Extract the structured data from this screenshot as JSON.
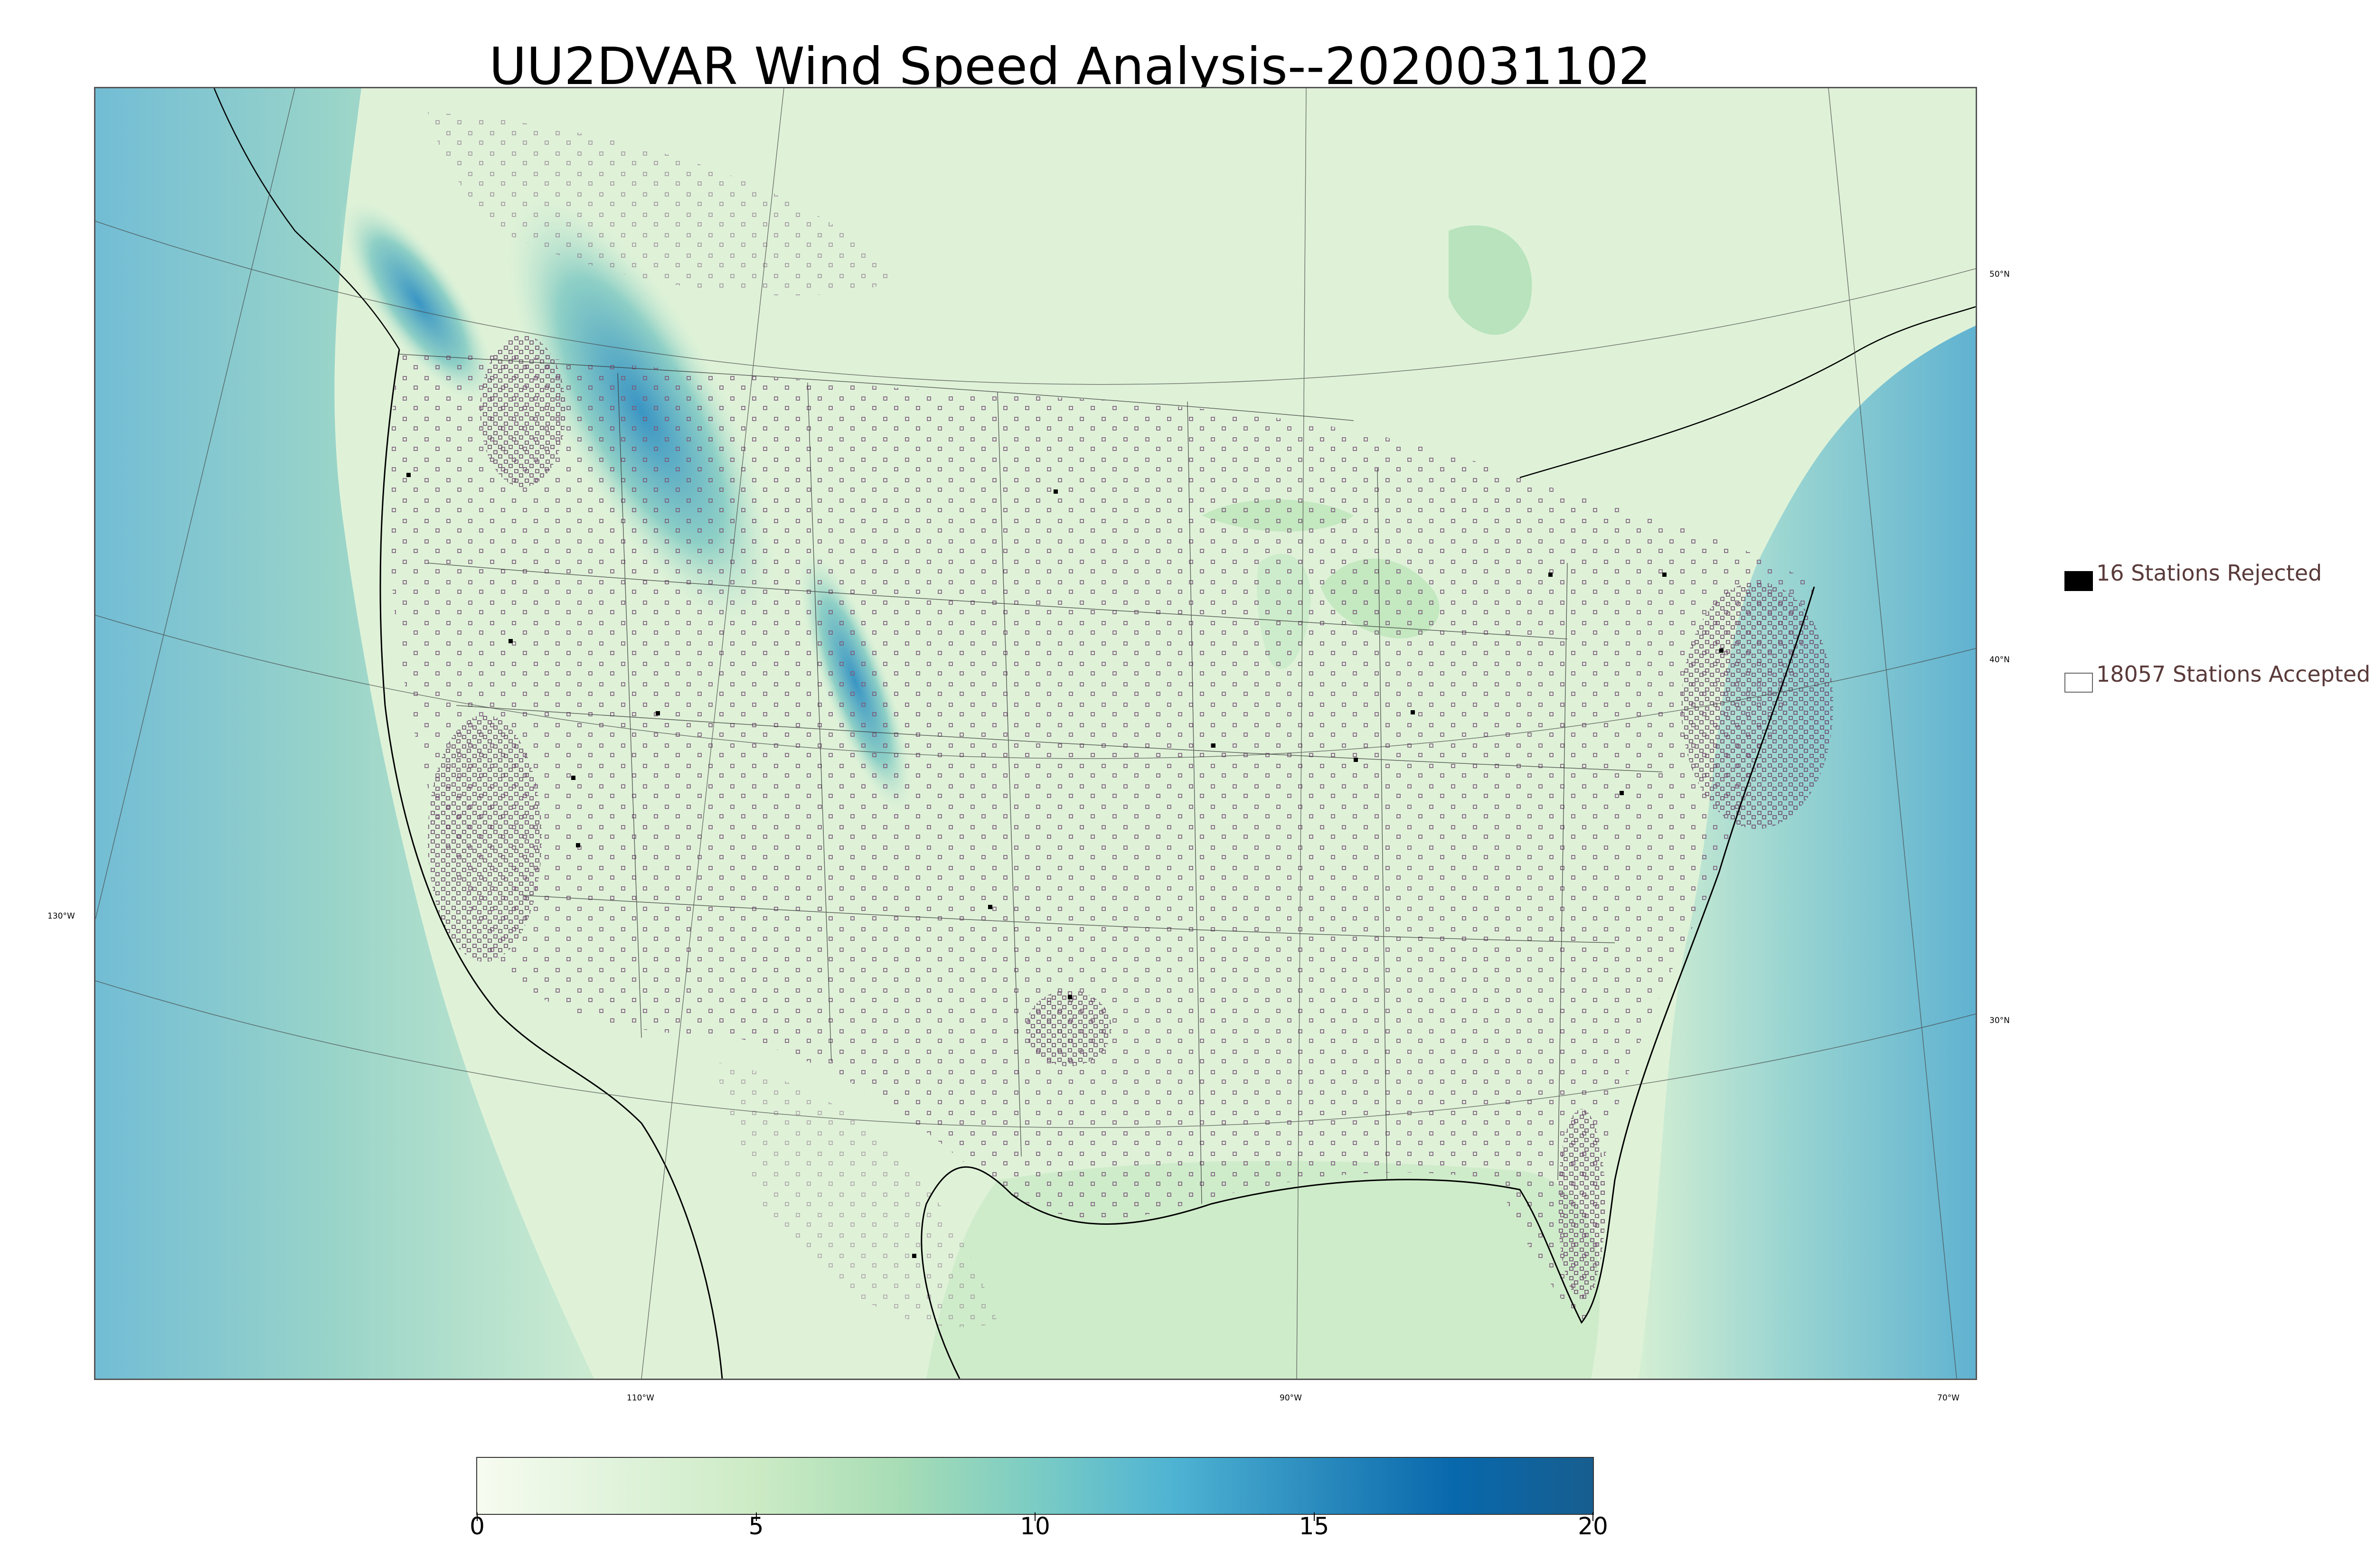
{
  "title": "UU2DVAR Wind Speed Analysis--2020031102",
  "map": {
    "graticule_labels": {
      "lat_50": "50°N",
      "lat_40": "40°N",
      "lat_30": "30°N",
      "lon_130": "130°W",
      "lon_110": "110°W",
      "lon_90": "90°W",
      "lon_70": "70°W"
    },
    "colors": {
      "land_light": "#e8f6e2",
      "land_mid": "#cbeac4",
      "ocean_light": "#a8ddb5",
      "ocean_blue": "#43a2ca",
      "mountain_blue": "#2b8cbe",
      "coastline": "#000000",
      "borders": "#333333",
      "station_accepted": "#7a5a7a",
      "station_rejected": "#000000"
    }
  },
  "legend": {
    "rejected_label": "16 Stations Rejected",
    "accepted_label": "18057 Stations Accepted",
    "rejected_count": 16,
    "accepted_count": 18057
  },
  "colorbar": {
    "min": 0,
    "max": 20,
    "ticks": [
      "0",
      "5",
      "10",
      "15",
      "20"
    ],
    "tick_values": [
      0,
      5,
      10,
      15,
      20
    ],
    "colors": [
      "#f7fcf0",
      "#e0f3db",
      "#ccebc5",
      "#a8ddb5",
      "#7bccc4",
      "#4eb3d3",
      "#2b8cbe",
      "#0868ac",
      "#175e8f"
    ]
  }
}
